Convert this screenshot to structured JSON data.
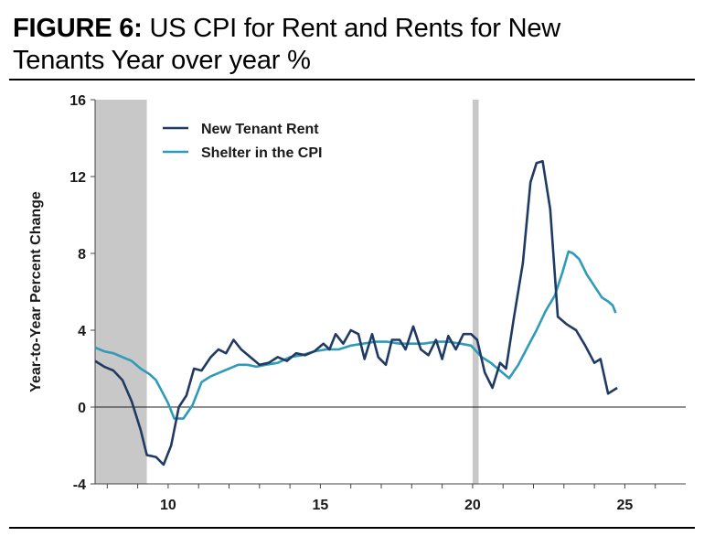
{
  "title": {
    "prefix": "FIGURE 6:",
    "line1": " US CPI for Rent and Rents for New",
    "line2": "Tenants Year over year %"
  },
  "chart_data": {
    "type": "line",
    "ylabel": "Year-to-Year Percent Change",
    "xlim": [
      2007.6,
      2027.0
    ],
    "ylim": [
      -4,
      16
    ],
    "y_ticks": [
      -4,
      0,
      4,
      8,
      12,
      16
    ],
    "y_tick_labels": [
      "-4",
      "0",
      "4",
      "8",
      "12",
      "16"
    ],
    "x_ticks": [
      2010,
      2015,
      2020,
      2025
    ],
    "x_tick_labels": [
      "10",
      "15",
      "20",
      "25"
    ],
    "recessions": [
      [
        2007.6,
        2009.3
      ],
      [
        2020.0,
        2020.2
      ]
    ],
    "legend_position": "top-left",
    "series": [
      {
        "name": "New Tenant Rent",
        "color": "#1f3a63",
        "points": [
          [
            2007.6,
            2.4
          ],
          [
            2007.9,
            2.1
          ],
          [
            2008.2,
            1.9
          ],
          [
            2008.5,
            1.4
          ],
          [
            2008.8,
            0.3
          ],
          [
            2009.1,
            -1.2
          ],
          [
            2009.3,
            -2.5
          ],
          [
            2009.6,
            -2.6
          ],
          [
            2009.85,
            -3.0
          ],
          [
            2010.1,
            -2.0
          ],
          [
            2010.35,
            0.0
          ],
          [
            2010.6,
            0.6
          ],
          [
            2010.85,
            2.0
          ],
          [
            2011.1,
            1.9
          ],
          [
            2011.4,
            2.6
          ],
          [
            2011.65,
            3.0
          ],
          [
            2011.9,
            2.8
          ],
          [
            2012.15,
            3.5
          ],
          [
            2012.4,
            3.0
          ],
          [
            2012.7,
            2.6
          ],
          [
            2013.0,
            2.2
          ],
          [
            2013.3,
            2.3
          ],
          [
            2013.6,
            2.6
          ],
          [
            2013.9,
            2.4
          ],
          [
            2014.2,
            2.8
          ],
          [
            2014.5,
            2.7
          ],
          [
            2014.8,
            2.9
          ],
          [
            2015.1,
            3.3
          ],
          [
            2015.3,
            3.0
          ],
          [
            2015.5,
            3.8
          ],
          [
            2015.75,
            3.3
          ],
          [
            2016.0,
            4.0
          ],
          [
            2016.25,
            3.8
          ],
          [
            2016.45,
            2.5
          ],
          [
            2016.7,
            3.8
          ],
          [
            2016.9,
            2.6
          ],
          [
            2017.15,
            2.2
          ],
          [
            2017.35,
            3.5
          ],
          [
            2017.6,
            3.5
          ],
          [
            2017.8,
            3.0
          ],
          [
            2018.05,
            4.2
          ],
          [
            2018.3,
            3.0
          ],
          [
            2018.55,
            2.7
          ],
          [
            2018.8,
            3.5
          ],
          [
            2019.0,
            2.5
          ],
          [
            2019.2,
            3.7
          ],
          [
            2019.45,
            3.0
          ],
          [
            2019.7,
            3.8
          ],
          [
            2019.95,
            3.8
          ],
          [
            2020.15,
            3.5
          ],
          [
            2020.4,
            1.8
          ],
          [
            2020.65,
            1.0
          ],
          [
            2020.9,
            2.3
          ],
          [
            2021.1,
            2.0
          ],
          [
            2021.35,
            4.6
          ],
          [
            2021.65,
            7.5
          ],
          [
            2021.9,
            11.7
          ],
          [
            2022.1,
            12.7
          ],
          [
            2022.3,
            12.8
          ],
          [
            2022.55,
            10.3
          ],
          [
            2022.8,
            4.7
          ],
          [
            2023.1,
            4.3
          ],
          [
            2023.4,
            4.0
          ],
          [
            2023.7,
            3.2
          ],
          [
            2024.0,
            2.3
          ],
          [
            2024.2,
            2.5
          ],
          [
            2024.45,
            0.7
          ],
          [
            2024.75,
            1.0
          ]
        ]
      },
      {
        "name": "Shelter in the CPI",
        "color": "#2e9bb8",
        "points": [
          [
            2007.6,
            3.1
          ],
          [
            2007.9,
            2.9
          ],
          [
            2008.2,
            2.8
          ],
          [
            2008.5,
            2.6
          ],
          [
            2008.8,
            2.4
          ],
          [
            2009.1,
            2.0
          ],
          [
            2009.4,
            1.7
          ],
          [
            2009.6,
            1.4
          ],
          [
            2009.8,
            0.8
          ],
          [
            2010.0,
            0.2
          ],
          [
            2010.2,
            -0.6
          ],
          [
            2010.5,
            -0.6
          ],
          [
            2010.8,
            0.1
          ],
          [
            2011.1,
            1.3
          ],
          [
            2011.4,
            1.6
          ],
          [
            2011.7,
            1.8
          ],
          [
            2012.0,
            2.0
          ],
          [
            2012.3,
            2.2
          ],
          [
            2012.6,
            2.2
          ],
          [
            2012.9,
            2.1
          ],
          [
            2013.2,
            2.2
          ],
          [
            2013.6,
            2.3
          ],
          [
            2014.0,
            2.6
          ],
          [
            2014.4,
            2.7
          ],
          [
            2014.8,
            2.9
          ],
          [
            2015.2,
            3.0
          ],
          [
            2015.6,
            3.0
          ],
          [
            2016.0,
            3.2
          ],
          [
            2016.4,
            3.3
          ],
          [
            2016.8,
            3.4
          ],
          [
            2017.2,
            3.4
          ],
          [
            2017.6,
            3.3
          ],
          [
            2018.0,
            3.3
          ],
          [
            2018.4,
            3.3
          ],
          [
            2018.8,
            3.4
          ],
          [
            2019.2,
            3.4
          ],
          [
            2019.6,
            3.3
          ],
          [
            2019.95,
            3.2
          ],
          [
            2020.3,
            2.6
          ],
          [
            2020.6,
            2.3
          ],
          [
            2020.9,
            1.9
          ],
          [
            2021.2,
            1.5
          ],
          [
            2021.5,
            2.2
          ],
          [
            2021.8,
            3.1
          ],
          [
            2022.1,
            4.0
          ],
          [
            2022.4,
            5.0
          ],
          [
            2022.7,
            5.8
          ],
          [
            2022.95,
            7.0
          ],
          [
            2023.15,
            8.1
          ],
          [
            2023.3,
            8.0
          ],
          [
            2023.5,
            7.7
          ],
          [
            2023.75,
            6.9
          ],
          [
            2024.0,
            6.3
          ],
          [
            2024.25,
            5.7
          ],
          [
            2024.45,
            5.5
          ],
          [
            2024.6,
            5.3
          ],
          [
            2024.7,
            4.9
          ]
        ]
      }
    ]
  }
}
